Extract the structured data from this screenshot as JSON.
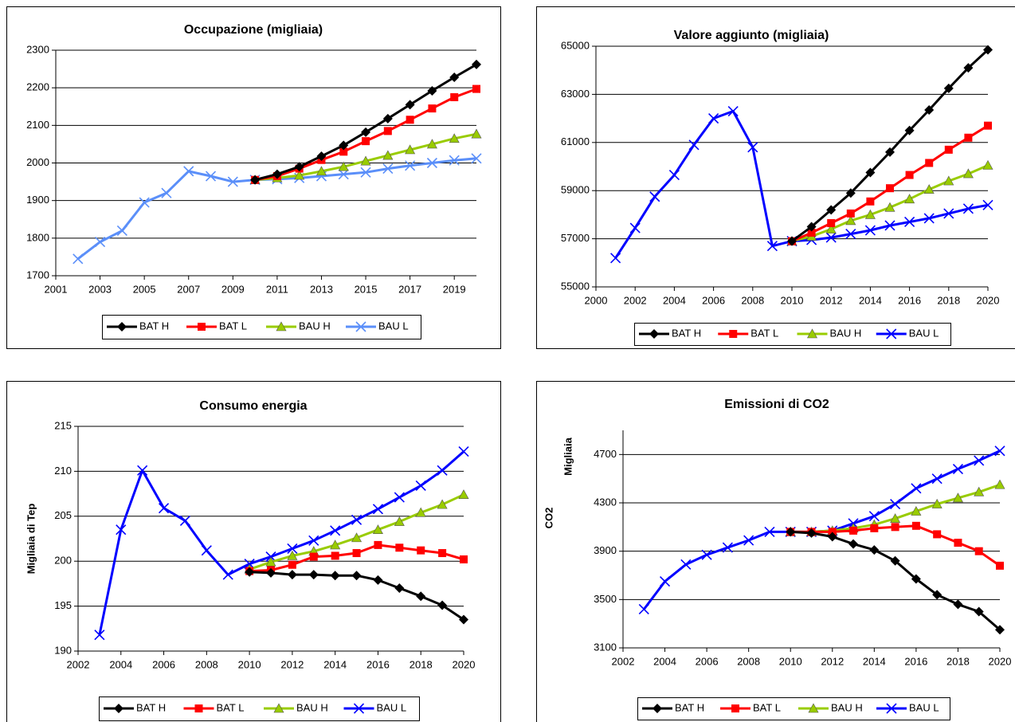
{
  "chart_data": [
    {
      "type": "line",
      "title": "Occupazione (migliaia)",
      "grid": true,
      "x": [
        2002,
        2003,
        2004,
        2005,
        2006,
        2007,
        2008,
        2009,
        2010,
        2011,
        2012,
        2013,
        2014,
        2015,
        2016,
        2017,
        2018,
        2019,
        2020
      ],
      "xlim": [
        2001,
        2020
      ],
      "xticks": [
        2001,
        2003,
        2005,
        2007,
        2009,
        2011,
        2013,
        2015,
        2017,
        2019
      ],
      "ylim": [
        1700,
        2300
      ],
      "yticks": [
        1700,
        1800,
        1900,
        2000,
        2100,
        2200,
        2300
      ],
      "series": [
        {
          "name": "BAT H",
          "color": "#000000",
          "marker": "diamond",
          "values": [
            null,
            null,
            null,
            null,
            null,
            null,
            null,
            null,
            1955,
            1970,
            1990,
            2018,
            2047,
            2082,
            2118,
            2155,
            2192,
            2228,
            2262
          ]
        },
        {
          "name": "BAT L",
          "color": "#ff0000",
          "marker": "square",
          "values": [
            null,
            null,
            null,
            null,
            null,
            null,
            null,
            null,
            1955,
            1965,
            1985,
            2008,
            2030,
            2058,
            2085,
            2115,
            2145,
            2175,
            2197
          ]
        },
        {
          "name": "BAU H",
          "color": "#99cc00",
          "marker": "triangle",
          "values": [
            null,
            null,
            null,
            null,
            null,
            null,
            null,
            null,
            1955,
            1960,
            1967,
            1978,
            1990,
            2005,
            2020,
            2035,
            2050,
            2065,
            2077
          ]
        },
        {
          "name": "BAU L",
          "color": "#5b8ff9",
          "marker": "x",
          "values": [
            1745,
            1790,
            1820,
            1895,
            1920,
            1978,
            1965,
            1950,
            1955,
            1957,
            1960,
            1965,
            1970,
            1975,
            1985,
            1993,
            2000,
            2007,
            2012
          ]
        }
      ]
    },
    {
      "type": "line",
      "title": "Valore aggiunto (migliaia)",
      "grid": true,
      "x": [
        2001,
        2002,
        2003,
        2004,
        2005,
        2006,
        2007,
        2008,
        2009,
        2010,
        2011,
        2012,
        2013,
        2014,
        2015,
        2016,
        2017,
        2018,
        2019,
        2020
      ],
      "xlim": [
        2000,
        2020
      ],
      "xticks": [
        2000,
        2002,
        2004,
        2006,
        2008,
        2010,
        2012,
        2014,
        2016,
        2018,
        2020
      ],
      "ylim": [
        55000,
        65000
      ],
      "yticks": [
        55000,
        57000,
        59000,
        61000,
        63000,
        65000
      ],
      "series": [
        {
          "name": "BAT H",
          "color": "#000000",
          "marker": "diamond",
          "values": [
            null,
            null,
            null,
            null,
            null,
            null,
            null,
            null,
            null,
            56900,
            57500,
            58200,
            58900,
            59750,
            60600,
            61500,
            62350,
            63250,
            64100,
            64850
          ]
        },
        {
          "name": "BAT L",
          "color": "#ff0000",
          "marker": "square",
          "values": [
            null,
            null,
            null,
            null,
            null,
            null,
            null,
            null,
            null,
            56900,
            57250,
            57650,
            58050,
            58550,
            59100,
            59650,
            60150,
            60700,
            61200,
            61700
          ]
        },
        {
          "name": "BAU H",
          "color": "#99cc00",
          "marker": "triangle",
          "values": [
            null,
            null,
            null,
            null,
            null,
            null,
            null,
            null,
            null,
            56900,
            57100,
            57400,
            57750,
            58000,
            58300,
            58650,
            59050,
            59400,
            59700,
            60050
          ]
        },
        {
          "name": "BAU L",
          "color": "#0000ff",
          "marker": "x",
          "values": [
            56200,
            57450,
            58750,
            59650,
            60900,
            62000,
            62300,
            60800,
            56700,
            56900,
            56950,
            57050,
            57200,
            57350,
            57550,
            57700,
            57850,
            58050,
            58250,
            58400
          ]
        }
      ]
    },
    {
      "type": "line",
      "title": "Consumo energia",
      "ylabel": "Migliaia di Tep",
      "grid": true,
      "x": [
        2003,
        2004,
        2005,
        2006,
        2007,
        2008,
        2009,
        2010,
        2011,
        2012,
        2013,
        2014,
        2015,
        2016,
        2017,
        2018,
        2019,
        2020
      ],
      "xlim": [
        2002,
        2020
      ],
      "xticks": [
        2002,
        2004,
        2006,
        2008,
        2010,
        2012,
        2014,
        2016,
        2018,
        2020
      ],
      "ylim": [
        190,
        215
      ],
      "yticks": [
        190,
        195,
        200,
        205,
        210,
        215
      ],
      "series": [
        {
          "name": "BAT H",
          "color": "#000000",
          "marker": "diamond",
          "values": [
            null,
            null,
            null,
            null,
            null,
            null,
            null,
            198.8,
            198.7,
            198.5,
            198.5,
            198.4,
            198.4,
            197.9,
            197.0,
            196.1,
            195.1,
            193.5
          ]
        },
        {
          "name": "BAT L",
          "color": "#ff0000",
          "marker": "square",
          "values": [
            null,
            null,
            null,
            null,
            null,
            null,
            null,
            198.9,
            199.0,
            199.6,
            200.5,
            200.6,
            200.9,
            201.8,
            201.5,
            201.2,
            200.9,
            200.2
          ]
        },
        {
          "name": "BAU H",
          "color": "#99cc00",
          "marker": "triangle",
          "values": [
            null,
            null,
            null,
            null,
            null,
            null,
            null,
            199.1,
            199.9,
            200.6,
            201.1,
            201.8,
            202.6,
            203.5,
            204.4,
            205.4,
            206.3,
            207.4
          ]
        },
        {
          "name": "BAU L",
          "color": "#0000ff",
          "marker": "x",
          "values": [
            191.8,
            203.5,
            210.1,
            205.9,
            204.5,
            201.2,
            198.5,
            199.7,
            200.5,
            201.4,
            202.3,
            203.4,
            204.6,
            205.8,
            207.1,
            208.4,
            210.1,
            212.2
          ]
        }
      ]
    },
    {
      "type": "line",
      "title": "Emissioni di CO2",
      "ylabel": "CO2",
      "annotation": "Migliaia",
      "grid": true,
      "x": [
        2003,
        2004,
        2005,
        2006,
        2007,
        2008,
        2009,
        2010,
        2011,
        2012,
        2013,
        2014,
        2015,
        2016,
        2017,
        2018,
        2019,
        2020
      ],
      "xlim": [
        2002,
        2020
      ],
      "xticks": [
        2002,
        2004,
        2006,
        2008,
        2010,
        2012,
        2014,
        2016,
        2018,
        2020
      ],
      "ylim": [
        3100,
        4900
      ],
      "yticks": [
        3100,
        3500,
        3900,
        4300,
        4700
      ],
      "series": [
        {
          "name": "BAT H",
          "color": "#000000",
          "marker": "diamond",
          "values": [
            null,
            null,
            null,
            null,
            null,
            null,
            null,
            4060,
            4050,
            4020,
            3960,
            3910,
            3820,
            3670,
            3540,
            3460,
            3400,
            3250
          ]
        },
        {
          "name": "BAT L",
          "color": "#ff0000",
          "marker": "square",
          "values": [
            null,
            null,
            null,
            null,
            null,
            null,
            null,
            4060,
            4060,
            4060,
            4070,
            4090,
            4100,
            4110,
            4040,
            3970,
            3900,
            3780
          ]
        },
        {
          "name": "BAU H",
          "color": "#99cc00",
          "marker": "triangle",
          "values": [
            null,
            null,
            null,
            null,
            null,
            null,
            null,
            4060,
            4060,
            4070,
            4090,
            4120,
            4170,
            4230,
            4290,
            4340,
            4390,
            4450
          ]
        },
        {
          "name": "BAU L",
          "color": "#0000ff",
          "marker": "x",
          "values": [
            3420,
            3650,
            3790,
            3870,
            3930,
            3990,
            4060,
            4060,
            4060,
            4070,
            4130,
            4190,
            4290,
            4420,
            4500,
            4580,
            4650,
            4730
          ]
        }
      ]
    }
  ]
}
